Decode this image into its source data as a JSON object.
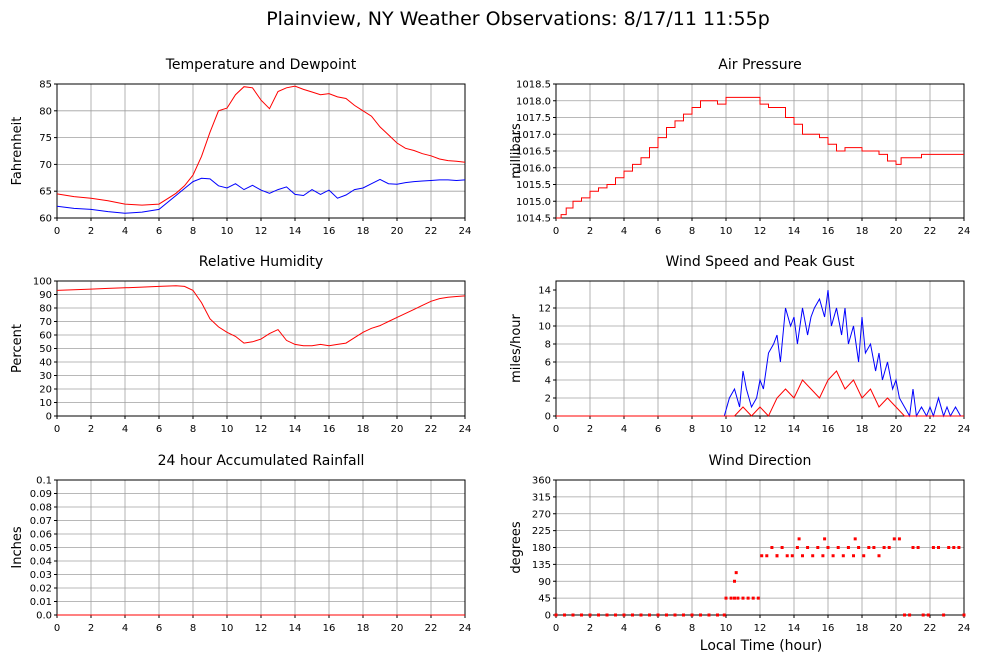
{
  "page": {
    "title": "Plainview, NY Weather Observations: 8/17/11 11:55p",
    "x_axis_title": "Local Time (hour)"
  },
  "colors": {
    "red": "#ff0000",
    "blue": "#0000ff",
    "grid": "#a0a0a0"
  },
  "chart_data": [
    {
      "id": "temp",
      "type": "line",
      "title": "Temperature and Dewpoint",
      "ylabel": "Fahrenheit",
      "xlim": [
        0,
        24
      ],
      "ylim": [
        60,
        85
      ],
      "xticks": [
        0,
        2,
        4,
        6,
        8,
        10,
        12,
        14,
        16,
        18,
        20,
        22,
        24
      ],
      "yticks": [
        60,
        65,
        70,
        75,
        80,
        85
      ],
      "ytick_labels": [
        "60",
        "65",
        "70",
        "75",
        "80",
        "85"
      ],
      "grid": true,
      "series": [
        {
          "color": "#ff0000",
          "x": [
            0,
            1,
            2,
            3,
            4,
            5,
            6,
            7,
            7.5,
            8,
            8.5,
            9,
            9.5,
            10,
            10.5,
            11,
            11.5,
            12,
            12.5,
            13,
            13.5,
            14,
            14.5,
            15,
            15.5,
            16,
            16.5,
            17,
            17.5,
            18,
            18.5,
            19,
            19.5,
            20,
            20.5,
            21,
            21.5,
            22,
            22.5,
            23,
            23.5,
            24
          ],
          "y": [
            64.5,
            64,
            63.7,
            63.2,
            62.6,
            62.4,
            62.6,
            64.6,
            66,
            68,
            71.5,
            76,
            80,
            80.5,
            83,
            84.5,
            84.3,
            82,
            80.4,
            83.6,
            84.3,
            84.6,
            84,
            83.5,
            83,
            83.2,
            82.6,
            82.3,
            81,
            80,
            79,
            77,
            75.5,
            74,
            73,
            72.6,
            72,
            71.6,
            71,
            70.7,
            70.6,
            70.4
          ]
        },
        {
          "color": "#0000ff",
          "x": [
            0,
            1,
            2,
            3,
            4,
            5,
            6,
            7,
            7.5,
            8,
            8.5,
            9,
            9.5,
            10,
            10.5,
            11,
            11.5,
            12,
            12.5,
            13,
            13.5,
            14,
            14.5,
            15,
            15.5,
            16,
            16.5,
            17,
            17.5,
            18,
            18.5,
            19,
            19.5,
            20,
            20.5,
            21,
            21.5,
            22,
            22.5,
            23,
            23.5,
            24
          ],
          "y": [
            62.2,
            61.8,
            61.6,
            61.2,
            60.9,
            61.1,
            61.6,
            64.2,
            65.5,
            66.8,
            67.4,
            67.3,
            66,
            65.6,
            66.4,
            65.3,
            66.1,
            65.2,
            64.6,
            65.3,
            65.8,
            64.4,
            64.2,
            65.3,
            64.4,
            65.2,
            63.7,
            64.3,
            65.3,
            65.6,
            66.4,
            67.2,
            66.4,
            66.3,
            66.6,
            66.8,
            66.9,
            67,
            67.1,
            67.1,
            67,
            67.1
          ]
        }
      ]
    },
    {
      "id": "pressure",
      "type": "line",
      "title": "Air Pressure",
      "ylabel": "millibars",
      "xlim": [
        0,
        24
      ],
      "ylim": [
        1014.5,
        1018.5
      ],
      "xticks": [
        0,
        2,
        4,
        6,
        8,
        10,
        12,
        14,
        16,
        18,
        20,
        22,
        24
      ],
      "yticks": [
        1014.5,
        1015.0,
        1015.5,
        1016.0,
        1016.5,
        1017.0,
        1017.5,
        1018.0,
        1018.5
      ],
      "ytick_labels": [
        "1014.5",
        "1015.0",
        "1015.5",
        "1016.0",
        "1016.5",
        "1017.0",
        "1017.5",
        "1018.0",
        "1018.5"
      ],
      "grid": true,
      "series": [
        {
          "color": "#ff0000",
          "step": true,
          "x": [
            0,
            0.3,
            0.6,
            1,
            1.5,
            2,
            2.5,
            3,
            3.5,
            4,
            4.5,
            5,
            5.5,
            6,
            6.5,
            7,
            7.5,
            8,
            8.5,
            9,
            9.5,
            10,
            10.5,
            11,
            11.5,
            12,
            12.5,
            13,
            13.5,
            14,
            14.5,
            15,
            15.5,
            16,
            16.5,
            17,
            17.5,
            18,
            18.5,
            19,
            19.5,
            20,
            20.3,
            21,
            21.5,
            22,
            22.5,
            23,
            24
          ],
          "y": [
            1014.5,
            1014.6,
            1014.8,
            1015,
            1015.1,
            1015.3,
            1015.4,
            1015.5,
            1015.7,
            1015.9,
            1016.1,
            1016.3,
            1016.6,
            1016.9,
            1017.2,
            1017.4,
            1017.6,
            1017.8,
            1018,
            1018,
            1017.9,
            1018.1,
            1018.1,
            1018.1,
            1018.1,
            1017.9,
            1017.8,
            1017.8,
            1017.5,
            1017.3,
            1017,
            1017,
            1016.9,
            1016.7,
            1016.5,
            1016.6,
            1016.6,
            1016.5,
            1016.5,
            1016.4,
            1016.2,
            1016.1,
            1016.3,
            1016.3,
            1016.4,
            1016.4,
            1016.4,
            1016.4,
            1016.4
          ]
        }
      ]
    },
    {
      "id": "humidity",
      "type": "line",
      "title": "Relative Humidity",
      "ylabel": "Percent",
      "xlim": [
        0,
        24
      ],
      "ylim": [
        0,
        100
      ],
      "xticks": [
        0,
        2,
        4,
        6,
        8,
        10,
        12,
        14,
        16,
        18,
        20,
        22,
        24
      ],
      "yticks": [
        0,
        10,
        20,
        30,
        40,
        50,
        60,
        70,
        80,
        90,
        100
      ],
      "ytick_labels": [
        "0",
        "10",
        "20",
        "30",
        "40",
        "50",
        "60",
        "70",
        "80",
        "90",
        "100"
      ],
      "grid": true,
      "series": [
        {
          "color": "#ff0000",
          "x": [
            0,
            1,
            2,
            3,
            4,
            5,
            6,
            7,
            7.5,
            8,
            8.5,
            9,
            9.5,
            10,
            10.5,
            11,
            11.5,
            12,
            12.5,
            13,
            13.5,
            14,
            14.5,
            15,
            15.5,
            16,
            16.5,
            17,
            17.5,
            18,
            18.5,
            19,
            19.5,
            20,
            20.5,
            21,
            21.5,
            22,
            22.5,
            23,
            23.5,
            24
          ],
          "y": [
            93,
            93.5,
            94,
            94.5,
            95,
            95.5,
            96,
            96.5,
            96,
            93,
            84,
            72,
            66,
            62,
            59,
            54,
            55,
            57,
            61,
            64,
            56,
            53,
            52,
            52,
            53,
            52,
            53,
            54,
            58,
            62,
            65,
            67,
            70,
            73,
            76,
            79,
            82,
            85,
            87,
            88,
            88.5,
            89
          ]
        }
      ]
    },
    {
      "id": "wind",
      "type": "line",
      "title": "Wind Speed and Peak Gust",
      "ylabel": "miles/hour",
      "xlim": [
        0,
        24
      ],
      "ylim": [
        0,
        15
      ],
      "xticks": [
        0,
        2,
        4,
        6,
        8,
        10,
        12,
        14,
        16,
        18,
        20,
        22,
        24
      ],
      "yticks": [
        0,
        2,
        4,
        6,
        8,
        10,
        12,
        14
      ],
      "ytick_labels": [
        "0",
        "2",
        "4",
        "6",
        "8",
        "10",
        "12",
        "14"
      ],
      "grid": true,
      "series": [
        {
          "color": "#0000ff",
          "x": [
            0,
            9.9,
            10.2,
            10.5,
            10.8,
            11,
            11.2,
            11.5,
            11.8,
            12,
            12.2,
            12.5,
            12.8,
            13,
            13.2,
            13.5,
            13.8,
            14,
            14.2,
            14.5,
            14.8,
            15,
            15.2,
            15.5,
            15.8,
            16,
            16.2,
            16.5,
            16.8,
            17,
            17.2,
            17.5,
            17.8,
            18,
            18.2,
            18.5,
            18.8,
            19,
            19.2,
            19.5,
            19.8,
            20,
            20.2,
            20.5,
            20.8,
            21,
            21.2,
            21.5,
            21.8,
            22,
            22.2,
            22.5,
            22.8,
            23,
            23.2,
            23.5,
            23.8,
            24
          ],
          "y": [
            0,
            0,
            2,
            3,
            1,
            5,
            3,
            1,
            2,
            4,
            3,
            7,
            8,
            9,
            6,
            12,
            10,
            11,
            8,
            12,
            9,
            11,
            12,
            13,
            11,
            14,
            10,
            12,
            9,
            12,
            8,
            10,
            6,
            11,
            7,
            8,
            5,
            7,
            4,
            6,
            3,
            4,
            2,
            1,
            0,
            3,
            0,
            1,
            0,
            1,
            0,
            2,
            0,
            1,
            0,
            1,
            0,
            0
          ]
        },
        {
          "color": "#ff0000",
          "x": [
            0,
            10,
            10.5,
            11,
            11.5,
            12,
            12.5,
            13,
            13.5,
            14,
            14.5,
            15,
            15.5,
            16,
            16.5,
            17,
            17.5,
            18,
            18.5,
            19,
            19.5,
            20,
            20.5,
            21,
            24
          ],
          "y": [
            0,
            0,
            0,
            1,
            0,
            1,
            0,
            2,
            3,
            2,
            4,
            3,
            2,
            4,
            5,
            3,
            4,
            2,
            3,
            1,
            2,
            1,
            0,
            0,
            0
          ]
        }
      ]
    },
    {
      "id": "rain",
      "type": "line",
      "title": "24 hour Accumulated Rainfall",
      "ylabel": "Inches",
      "xlim": [
        0,
        24
      ],
      "ylim": [
        0,
        0.1
      ],
      "xticks": [
        0,
        2,
        4,
        6,
        8,
        10,
        12,
        14,
        16,
        18,
        20,
        22,
        24
      ],
      "yticks": [
        0,
        0.01,
        0.02,
        0.03,
        0.04,
        0.05,
        0.06,
        0.07,
        0.08,
        0.09,
        0.1
      ],
      "ytick_labels": [
        "0.0",
        "0.01",
        "0.02",
        "0.03",
        "0.04",
        "0.05",
        "0.06",
        "0.07",
        "0.08",
        "0.09",
        "0.1"
      ],
      "grid": true,
      "series": [
        {
          "color": "#ff0000",
          "x": [
            0,
            24
          ],
          "y": [
            0,
            0
          ]
        }
      ]
    },
    {
      "id": "winddir",
      "type": "scatter",
      "title": "Wind Direction",
      "ylabel": "degrees",
      "xlim": [
        0,
        24
      ],
      "ylim": [
        0,
        360
      ],
      "xticks": [
        0,
        2,
        4,
        6,
        8,
        10,
        12,
        14,
        16,
        18,
        20,
        22,
        24
      ],
      "yticks": [
        0,
        45,
        90,
        135,
        180,
        225,
        270,
        315,
        360
      ],
      "ytick_labels": [
        "0",
        "45",
        "90",
        "135",
        "180",
        "225",
        "270",
        "315",
        "360"
      ],
      "grid": true,
      "series": [
        {
          "color": "#ff0000",
          "x": [
            0,
            0.5,
            1,
            1.5,
            2,
            2.5,
            3,
            3.5,
            4,
            4.5,
            5,
            5.5,
            6,
            6.5,
            7,
            7.5,
            8,
            8.5,
            9,
            9.5,
            9.9,
            10,
            10.3,
            10.5,
            10.7,
            11,
            11.3,
            11.6,
            11.9,
            12.1,
            12.4,
            12.7,
            13,
            13.3,
            13.6,
            13.9,
            14.2,
            14.5,
            14.8,
            15.1,
            15.4,
            15.7,
            16,
            16.3,
            16.6,
            16.9,
            17.2,
            17.5,
            17.8,
            18.1,
            18.4,
            18.7,
            19,
            19.3,
            19.6,
            19.9,
            20.2,
            20.5,
            20.8,
            21,
            21.3,
            21.6,
            21.9,
            22.2,
            22.5,
            22.8,
            23.1,
            23.4,
            23.7,
            24,
            13,
            14.3,
            15.8,
            17.6,
            10.6,
            10.5
          ],
          "y": [
            0,
            0,
            0,
            0,
            0,
            0,
            0,
            0,
            0,
            0,
            0,
            0,
            0,
            0,
            0,
            0,
            0,
            0,
            0,
            0,
            0,
            45,
            45,
            45,
            45,
            45,
            45,
            45,
            45,
            158,
            158,
            180,
            158,
            180,
            158,
            158,
            180,
            158,
            180,
            158,
            180,
            158,
            180,
            158,
            180,
            158,
            180,
            158,
            180,
            158,
            180,
            180,
            158,
            180,
            180,
            203,
            203,
            0,
            0,
            180,
            180,
            0,
            0,
            180,
            180,
            0,
            180,
            180,
            180,
            0,
            158,
            203,
            203,
            203,
            113,
            90
          ]
        }
      ]
    }
  ]
}
